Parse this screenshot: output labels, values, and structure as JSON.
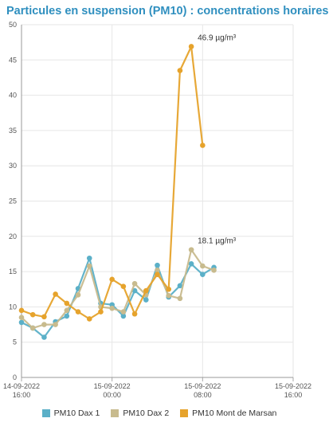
{
  "title": "Particules en suspension (PM10) : concentrations horaires",
  "chart_data": {
    "type": "line",
    "title": "Particules en suspension (PM10) : concentrations horaires",
    "xlabel": "",
    "ylabel": "",
    "ylim": [
      0,
      50
    ],
    "yticks": [
      "0",
      "5",
      "10",
      "15",
      "20",
      "25",
      "30",
      "35",
      "40",
      "45",
      "50"
    ],
    "x_tick_labels": [
      [
        "14-09-2022",
        "16:00"
      ],
      [
        "15-09-2022",
        "00:00"
      ],
      [
        "15-09-2022",
        "08:00"
      ],
      [
        "15-09-2022",
        "16:00"
      ]
    ],
    "x_unit": "hours since 14-09-2022 16:00",
    "xlim": [
      0,
      24
    ],
    "grid": true,
    "legend_position": "bottom",
    "series": [
      {
        "name": "PM10 Dax 1",
        "color": "#5bb0c8",
        "x": [
          0,
          1,
          2,
          3,
          4,
          5,
          6,
          7,
          8,
          9,
          10,
          11,
          12,
          13,
          14,
          15,
          16,
          17
        ],
        "values": [
          7.8,
          7.0,
          5.7,
          7.9,
          8.7,
          12.6,
          16.9,
          10.5,
          10.3,
          8.7,
          12.3,
          11.0,
          15.9,
          11.4,
          13.0,
          16.1,
          14.6,
          15.6
        ]
      },
      {
        "name": "PM10 Dax 2",
        "color": "#c8bb8e",
        "x": [
          0,
          1,
          2,
          3,
          4,
          5,
          6,
          7,
          8,
          9,
          10,
          11,
          12,
          13,
          14,
          15,
          16,
          17
        ],
        "values": [
          8.5,
          7.0,
          7.5,
          7.5,
          9.5,
          11.7,
          15.8,
          10.0,
          9.8,
          9.3,
          13.3,
          11.7,
          15.2,
          11.6,
          11.2,
          18.1,
          15.8,
          15.2
        ]
      },
      {
        "name": "PM10 Mont de Marsan",
        "color": "#e6a32c",
        "x": [
          0,
          1,
          2,
          3,
          4,
          5,
          6,
          7,
          8,
          9,
          10,
          11,
          12,
          13,
          14,
          15,
          16
        ],
        "values": [
          9.5,
          8.9,
          8.6,
          11.8,
          10.5,
          9.3,
          8.3,
          9.3,
          13.9,
          12.9,
          9.0,
          12.3,
          14.6,
          12.5,
          43.5,
          46.9,
          32.9
        ]
      }
    ],
    "annotations": [
      {
        "text": "46.9 µg/m³",
        "x": 15,
        "y": 46.9
      },
      {
        "text": "18.1 µg/m³",
        "x": 15,
        "y": 18.1
      }
    ]
  }
}
